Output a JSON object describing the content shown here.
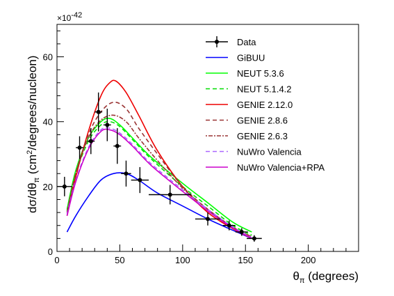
{
  "chart_data": {
    "type": "line",
    "xlabel": "θπ (degrees)",
    "xlabel_main": "θ",
    "xlabel_sub": "π",
    "xlabel_rest": " (degrees)",
    "ylabel": "dσ/dθπ (cm²/degrees/nucleon)",
    "ylabel_a": "dσ/dθ",
    "ylabel_sub": "π",
    "ylabel_b": " (cm",
    "ylabel_sup": "2",
    "ylabel_c": "/degrees/nucleon)",
    "y_multiplier": "×10",
    "y_multiplier_exp": "-42",
    "xlim": [
      0,
      240
    ],
    "ylim": [
      0,
      70
    ],
    "x_ticks": [
      0,
      50,
      100,
      150,
      200
    ],
    "y_ticks": [
      0,
      20,
      40,
      60
    ],
    "legend_position": "top-right",
    "grid": false,
    "data_points": {
      "name": "Data",
      "color": "#000000",
      "points": [
        {
          "x": 6,
          "y": 20,
          "xerr": 6,
          "yerr": 3
        },
        {
          "x": 18,
          "y": 32,
          "xerr": 3,
          "yerr": 3.5
        },
        {
          "x": 27,
          "y": 34,
          "xerr": 3,
          "yerr": 4
        },
        {
          "x": 33,
          "y": 43,
          "xerr": 3,
          "yerr": 6
        },
        {
          "x": 40,
          "y": 39,
          "xerr": 3,
          "yerr": 5
        },
        {
          "x": 48,
          "y": 32.5,
          "xerr": 3,
          "yerr": 5.5
        },
        {
          "x": 55,
          "y": 24,
          "xerr": 4,
          "yerr": 4
        },
        {
          "x": 66,
          "y": 22,
          "xerr": 7,
          "yerr": 4
        },
        {
          "x": 90,
          "y": 17.5,
          "xerr": 17,
          "yerr": 3
        },
        {
          "x": 120,
          "y": 10,
          "xerr": 10,
          "yerr": 2
        },
        {
          "x": 137,
          "y": 8,
          "xerr": 5,
          "yerr": 1.5
        },
        {
          "x": 147,
          "y": 6,
          "xerr": 5,
          "yerr": 1.2
        },
        {
          "x": 157,
          "y": 4,
          "xerr": 6,
          "yerr": 1
        }
      ]
    },
    "series": [
      {
        "name": "GiBUU",
        "color": "#0000ff",
        "dash": "",
        "x": [
          8,
          15,
          25,
          35,
          45,
          55,
          65,
          80,
          100,
          120,
          140,
          155
        ],
        "y": [
          6,
          11,
          17,
          22,
          24,
          24,
          22,
          18,
          14,
          10,
          6.5,
          4
        ]
      },
      {
        "name": "NEUT 5.3.6",
        "color": "#00ff00",
        "dash": "",
        "x": [
          8,
          15,
          25,
          35,
          42,
          50,
          60,
          75,
          100,
          120,
          140,
          155
        ],
        "y": [
          13,
          25,
          35,
          40,
          41,
          39,
          35,
          29,
          21,
          15,
          9,
          6
        ]
      },
      {
        "name": "NEUT 5.1.4.2",
        "color": "#00dd00",
        "dash": "6,4",
        "x": [
          8,
          15,
          25,
          35,
          42,
          50,
          60,
          75,
          100,
          120,
          140,
          155
        ],
        "y": [
          12.5,
          24,
          34,
          39,
          40,
          38.5,
          34.5,
          28.5,
          20,
          14,
          8,
          5
        ]
      },
      {
        "name": "GENIE 2.12.0",
        "color": "#ee0000",
        "dash": "",
        "x": [
          8,
          15,
          25,
          35,
          42,
          47,
          55,
          65,
          80,
          100,
          120,
          140,
          155
        ],
        "y": [
          11,
          23,
          37,
          48,
          52,
          52.5,
          49,
          42,
          31,
          20,
          12,
          7,
          4
        ]
      },
      {
        "name": "GENIE 2.8.6",
        "color": "#993333",
        "dash": "6,4",
        "x": [
          8,
          15,
          25,
          35,
          45,
          55,
          65,
          80,
          100,
          120,
          140,
          155
        ],
        "y": [
          12,
          24,
          36,
          43,
          46,
          44,
          38,
          30,
          20,
          13,
          7.5,
          4.5
        ]
      },
      {
        "name": "GENIE 2.6.3",
        "color": "#993333",
        "dash": "2,2,6,2",
        "x": [
          8,
          15,
          25,
          35,
          45,
          55,
          65,
          80,
          100,
          120,
          140,
          155
        ],
        "y": [
          12,
          24,
          35,
          40.5,
          42,
          40,
          35,
          28,
          19.5,
          13,
          7.5,
          4.5
        ]
      },
      {
        "name": "NuWro Valencia",
        "color": "#aa66ff",
        "dash": "6,4",
        "x": [
          8,
          15,
          25,
          35,
          42,
          50,
          60,
          75,
          100,
          120,
          140,
          155
        ],
        "y": [
          11.5,
          22,
          32,
          37.5,
          38,
          36.5,
          33,
          27,
          19,
          13,
          7.5,
          4.2
        ]
      },
      {
        "name": "NuWro Valencia+RPA",
        "color": "#cc00cc",
        "dash": "",
        "x": [
          8,
          15,
          25,
          35,
          42,
          50,
          60,
          75,
          100,
          120,
          140,
          155
        ],
        "y": [
          11,
          21.5,
          31.5,
          37,
          37.5,
          36,
          32.5,
          26.5,
          18.5,
          12.5,
          7.2,
          4
        ]
      }
    ]
  }
}
